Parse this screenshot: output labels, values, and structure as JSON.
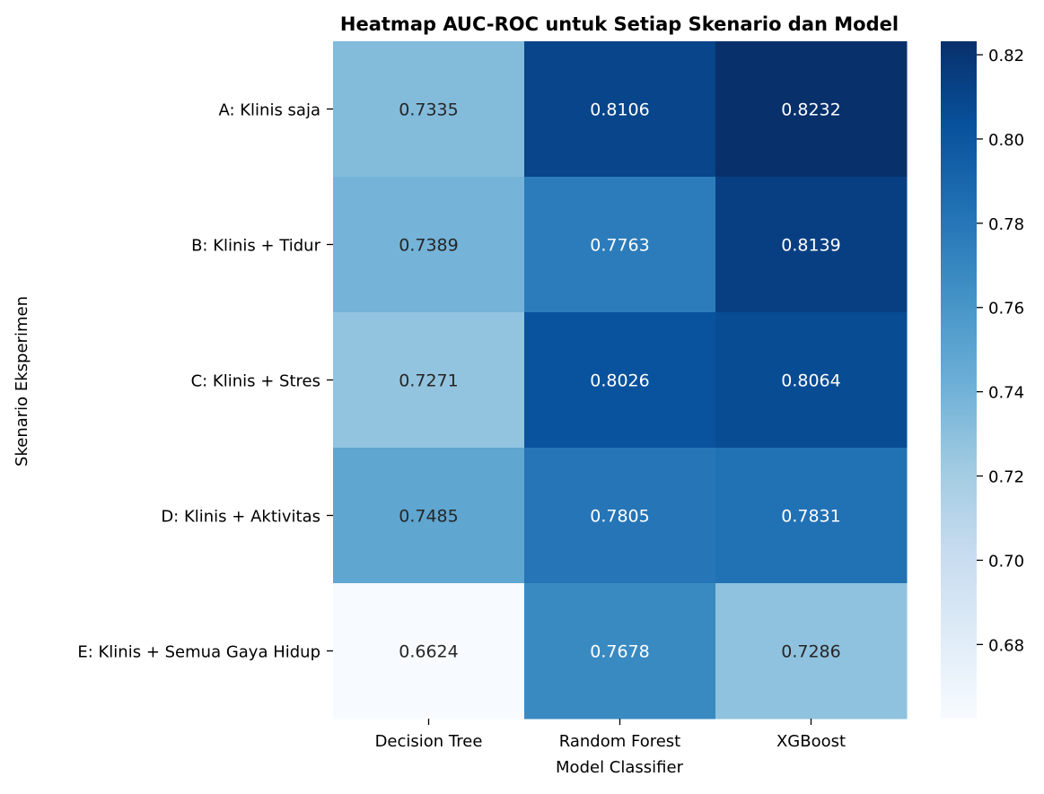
{
  "chart_data": {
    "type": "heatmap",
    "title": "Heatmap AUC-ROC untuk Setiap Skenario dan Model",
    "xlabel": "Model Classifier",
    "ylabel": "Skenario Eksperimen",
    "columns": [
      "Decision Tree",
      "Random Forest",
      "XGBoost"
    ],
    "rows": [
      "A: Klinis saja",
      "B: Klinis + Tidur",
      "C: Klinis + Stres",
      "D: Klinis + Aktivitas",
      "E: Klinis + Semua Gaya Hidup"
    ],
    "values": [
      [
        0.7335,
        0.8106,
        0.8232
      ],
      [
        0.7389,
        0.7763,
        0.8139
      ],
      [
        0.7271,
        0.8026,
        0.8064
      ],
      [
        0.7485,
        0.7805,
        0.7831
      ],
      [
        0.6624,
        0.7678,
        0.7286
      ]
    ],
    "colormap": "Blues",
    "color_range": [
      0.6624,
      0.8232
    ],
    "colorbar_ticks": [
      "0.68",
      "0.70",
      "0.72",
      "0.74",
      "0.76",
      "0.78",
      "0.80",
      "0.82"
    ]
  }
}
